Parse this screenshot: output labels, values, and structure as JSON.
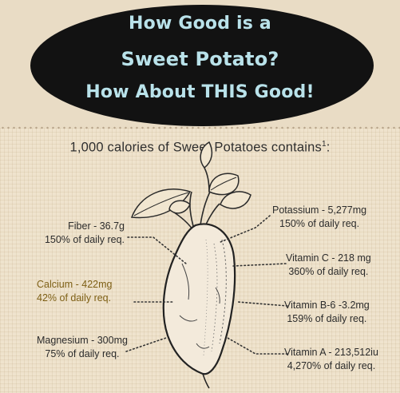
{
  "title_lines": [
    "How Good is a",
    "Sweet Potato?",
    "How About THIS Good!"
  ],
  "subtitle": "1,000 calories of Sweet Potatoes contains",
  "subtitle_footnote": "1",
  "subtitle_suffix": ":",
  "colors": {
    "banner_bg": "#121212",
    "banner_text": "#b9e2ea",
    "highlight_text": "#7e6016",
    "background": "#efe3cd"
  },
  "illustration": "sweet-potato-with-leaves",
  "nutrients": [
    {
      "name": "Fiber - 36.7g",
      "daily": "150% of daily req."
    },
    {
      "name": "Calcium - 422mg",
      "daily": "42% of daily req.",
      "highlight": true
    },
    {
      "name": "Magnesium - 300mg",
      "daily": "75% of daily req."
    },
    {
      "name": "Potassium - 5,277mg",
      "daily": "150% of daily req."
    },
    {
      "name": "Vitamin C - 218 mg",
      "daily": "360% of daily req."
    },
    {
      "name": "Vitamin B-6 -3.2mg",
      "daily": "159% of daily req."
    },
    {
      "name": "Vitamin A - 213,512iu",
      "daily": "4,270% of daily req."
    }
  ]
}
